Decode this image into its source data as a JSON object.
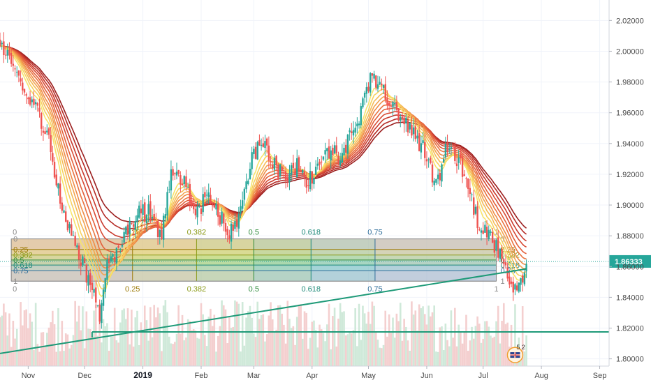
{
  "chart_data": {
    "type": "candlestick",
    "symbol_pair_flag": "uk-flag",
    "price_axis": {
      "ticks": [
        "2.02000",
        "2.00000",
        "1.98000",
        "1.96000",
        "1.94000",
        "1.92000",
        "1.90000",
        "1.88000",
        "1.86000",
        "1.84000",
        "1.82000",
        "1.80000"
      ],
      "ylim": [
        1.7953,
        2.0333
      ],
      "last_price": "1.86333",
      "last_price_value": 1.86333,
      "last_price_color": "#26a69a"
    },
    "time_axis": {
      "ticks": [
        {
          "label": "Nov",
          "t": 3,
          "bold": false
        },
        {
          "label": "Dec",
          "t": 33,
          "bold": false
        },
        {
          "label": "2019",
          "t": 64,
          "bold": true
        },
        {
          "label": "Feb",
          "t": 95,
          "bold": false
        },
        {
          "label": "Mar",
          "t": 123,
          "bold": false
        },
        {
          "label": "Apr",
          "t": 154,
          "bold": false
        },
        {
          "label": "May",
          "t": 184,
          "bold": false
        },
        {
          "label": "Jun",
          "t": 215,
          "bold": false
        },
        {
          "label": "Jul",
          "t": 245,
          "bold": false
        },
        {
          "label": "Aug",
          "t": 276,
          "bold": false
        },
        {
          "label": "Sep",
          "t": 307,
          "bold": false
        }
      ],
      "xlim": [
        -12,
        312
      ]
    },
    "price_keypoints": [
      [
        -12,
        2.008
      ],
      [
        -4,
        1.985
      ],
      [
        6,
        1.965
      ],
      [
        14,
        1.94
      ],
      [
        21,
        1.9
      ],
      [
        26,
        1.88
      ],
      [
        30,
        1.87
      ],
      [
        36,
        1.848
      ],
      [
        41,
        1.83
      ],
      [
        45,
        1.86
      ],
      [
        50,
        1.87
      ],
      [
        56,
        1.882
      ],
      [
        62,
        1.895
      ],
      [
        68,
        1.895
      ],
      [
        74,
        1.88
      ],
      [
        80,
        1.925
      ],
      [
        86,
        1.915
      ],
      [
        92,
        1.895
      ],
      [
        98,
        1.905
      ],
      [
        104,
        1.895
      ],
      [
        110,
        1.88
      ],
      [
        116,
        1.895
      ],
      [
        122,
        1.935
      ],
      [
        128,
        1.938
      ],
      [
        134,
        1.925
      ],
      [
        140,
        1.918
      ],
      [
        146,
        1.925
      ],
      [
        152,
        1.915
      ],
      [
        158,
        1.928
      ],
      [
        164,
        1.935
      ],
      [
        170,
        1.932
      ],
      [
        176,
        1.948
      ],
      [
        181,
        1.965
      ],
      [
        186,
        1.985
      ],
      [
        190,
        1.975
      ],
      [
        196,
        1.968
      ],
      [
        202,
        1.955
      ],
      [
        208,
        1.945
      ],
      [
        214,
        1.935
      ],
      [
        220,
        1.912
      ],
      [
        226,
        1.938
      ],
      [
        232,
        1.93
      ],
      [
        238,
        1.908
      ],
      [
        242,
        1.89
      ],
      [
        248,
        1.882
      ],
      [
        252,
        1.872
      ],
      [
        256,
        1.86
      ],
      [
        260,
        1.845
      ],
      [
        263,
        1.842
      ],
      [
        266,
        1.852
      ],
      [
        268,
        1.863
      ]
    ],
    "ema_ribbon": {
      "periods": [
        8,
        11,
        14,
        17,
        20,
        24,
        28,
        33,
        38,
        44,
        50
      ],
      "colors": [
        "#f7e46a",
        "#f7d160",
        "#f5bb57",
        "#f3a450",
        "#ef8c48",
        "#ea7441",
        "#e35f3b",
        "#d84b35",
        "#c93a2e",
        "#b52c27",
        "#9c1f1f"
      ]
    },
    "volume": {
      "up_color": "#cfe9d9",
      "down_color": "#f4cfcf"
    },
    "fib_retracement": {
      "box_t": [
        -6,
        252
      ],
      "price_top": 1.878,
      "price_bottom": 1.8505,
      "levels": [
        {
          "label": "0",
          "ratio": 0.0,
          "color": "#8a8a8a"
        },
        {
          "label": "0.25",
          "ratio": 0.25,
          "color": "#9c7a06"
        },
        {
          "label": "0.382",
          "ratio": 0.382,
          "color": "#8a9a15"
        },
        {
          "label": "0.5",
          "ratio": 0.5,
          "color": "#2e8b3c"
        },
        {
          "label": "0.618",
          "ratio": 0.618,
          "color": "#1f8a7a"
        },
        {
          "label": "0.75",
          "ratio": 0.75,
          "color": "#2f6e9a"
        },
        {
          "label": "1",
          "ratio": 1.0,
          "color": "#8a8a8a"
        }
      ],
      "band_colors": [
        "#d9b88a",
        "#dcc86a",
        "#b7d266",
        "#86c98d",
        "#7fc2c6",
        "#a8b9cf"
      ]
    },
    "trendlines": [
      {
        "name": "rising-support",
        "from": [
          -12,
          1.8035
        ],
        "to": [
          268,
          1.8585
        ],
        "color": "#1e9a78"
      },
      {
        "name": "horizontal-support",
        "from": [
          37,
          1.8175
        ],
        "to": [
          312,
          1.8175
        ],
        "color": "#1e9a78"
      },
      {
        "name": "support-stub",
        "from": [
          37,
          1.8175
        ],
        "to": [
          37,
          1.814
        ],
        "color": "#1e9a78"
      }
    ],
    "badge": {
      "text": "5 2"
    }
  }
}
